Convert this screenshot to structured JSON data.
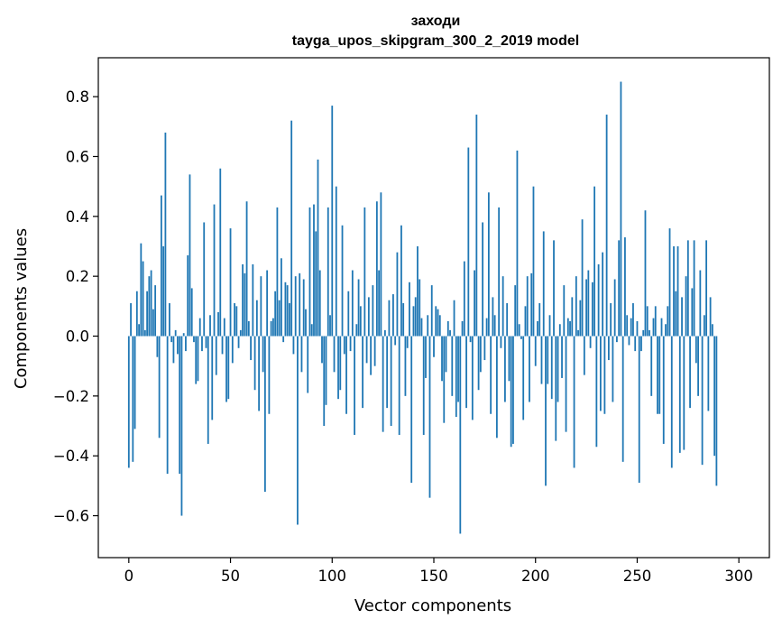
{
  "chart_data": {
    "type": "bar",
    "title_line1": "заходи",
    "title_line2": "tayga_upos_skipgram_300_2_2019 model",
    "xlabel": "Vector components",
    "ylabel": "Components values",
    "xlim": [
      -15,
      315
    ],
    "ylim": [
      -0.74,
      0.93
    ],
    "x_ticks": [
      0,
      50,
      100,
      150,
      200,
      250,
      300
    ],
    "x_tick_labels": [
      "0",
      "50",
      "100",
      "150",
      "200",
      "250",
      "300"
    ],
    "y_ticks": [
      -0.6,
      -0.4,
      -0.2,
      0.0,
      0.2,
      0.4,
      0.6,
      0.8
    ],
    "y_tick_labels": [
      "−0.6",
      "−0.4",
      "−0.2",
      "0.0",
      "0.2",
      "0.4",
      "0.6",
      "0.8"
    ],
    "bar_color": "#1f77b4",
    "grid": false,
    "values": [
      -0.44,
      0.11,
      -0.42,
      -0.31,
      0.15,
      0.04,
      0.31,
      0.25,
      0.02,
      0.15,
      0.2,
      0.22,
      0.09,
      0.17,
      -0.07,
      -0.34,
      0.47,
      0.3,
      0.68,
      -0.46,
      0.11,
      -0.02,
      -0.09,
      0.02,
      -0.06,
      -0.46,
      -0.6,
      0.01,
      -0.05,
      0.27,
      0.54,
      0.16,
      -0.02,
      -0.16,
      -0.15,
      0.06,
      -0.05,
      0.38,
      -0.04,
      -0.36,
      0.07,
      -0.28,
      0.44,
      -0.13,
      0.08,
      0.56,
      -0.06,
      0.06,
      -0.22,
      -0.21,
      0.36,
      -0.09,
      0.11,
      0.1,
      -0.04,
      0.02,
      0.24,
      0.21,
      0.45,
      0.05,
      -0.08,
      0.24,
      -0.18,
      0.12,
      -0.25,
      0.2,
      -0.12,
      -0.52,
      0.22,
      -0.26,
      0.05,
      0.06,
      0.15,
      0.43,
      0.12,
      0.26,
      -0.02,
      0.18,
      0.17,
      0.11,
      0.72,
      -0.06,
      0.2,
      -0.63,
      0.21,
      -0.12,
      0.19,
      0.09,
      -0.19,
      0.43,
      0.04,
      0.44,
      0.35,
      0.59,
      0.22,
      -0.09,
      -0.3,
      -0.23,
      0.43,
      0.07,
      0.77,
      -0.12,
      0.5,
      -0.21,
      -0.18,
      0.37,
      -0.06,
      -0.26,
      0.15,
      -0.05,
      0.22,
      -0.33,
      0.04,
      0.19,
      0.1,
      -0.24,
      0.43,
      -0.09,
      0.13,
      -0.13,
      0.17,
      -0.1,
      0.45,
      0.22,
      0.48,
      -0.32,
      0.02,
      -0.24,
      0.12,
      -0.3,
      0.14,
      -0.03,
      0.28,
      -0.33,
      0.37,
      0.11,
      -0.2,
      -0.04,
      0.18,
      -0.49,
      0.1,
      0.13,
      0.3,
      0.19,
      0.06,
      -0.33,
      -0.14,
      0.07,
      -0.54,
      0.17,
      -0.07,
      0.1,
      0.09,
      0.07,
      -0.15,
      -0.29,
      -0.12,
      0.05,
      0.02,
      -0.2,
      0.12,
      -0.27,
      -0.22,
      -0.66,
      0.05,
      0.25,
      -0.24,
      0.63,
      -0.02,
      -0.28,
      0.22,
      0.74,
      -0.18,
      -0.12,
      0.38,
      -0.08,
      0.06,
      0.48,
      -0.26,
      0.13,
      0.07,
      -0.34,
      0.43,
      -0.04,
      0.2,
      -0.22,
      0.11,
      -0.15,
      -0.37,
      -0.36,
      0.17,
      0.62,
      0.04,
      -0.01,
      -0.28,
      0.1,
      0.2,
      -0.22,
      0.21,
      0.5,
      -0.1,
      0.05,
      0.11,
      -0.16,
      0.35,
      -0.5,
      -0.16,
      0.07,
      -0.21,
      0.32,
      -0.35,
      -0.22,
      0.04,
      -0.14,
      0.17,
      -0.32,
      0.06,
      0.05,
      0.13,
      -0.44,
      0.2,
      0.02,
      0.12,
      0.39,
      -0.13,
      0.19,
      0.22,
      -0.04,
      0.18,
      0.5,
      -0.37,
      0.24,
      -0.25,
      0.28,
      -0.26,
      0.74,
      -0.08,
      0.11,
      -0.22,
      0.19,
      -0.02,
      0.32,
      0.85,
      -0.42,
      0.33,
      0.07,
      -0.03,
      0.06,
      0.11,
      -0.05,
      0.05,
      -0.49,
      -0.05,
      0.02,
      0.42,
      0.1,
      0.02,
      -0.2,
      0.06,
      0.1,
      -0.26,
      -0.26,
      0.06,
      -0.36,
      0.04,
      0.1,
      0.36,
      -0.44,
      0.3,
      0.15,
      0.3,
      -0.39,
      0.13,
      -0.38,
      0.2,
      0.32,
      -0.24,
      0.16,
      0.32,
      -0.09,
      -0.2,
      0.22,
      -0.43,
      0.07,
      0.32,
      -0.25,
      0.13,
      0.04,
      -0.4,
      -0.5
    ]
  }
}
